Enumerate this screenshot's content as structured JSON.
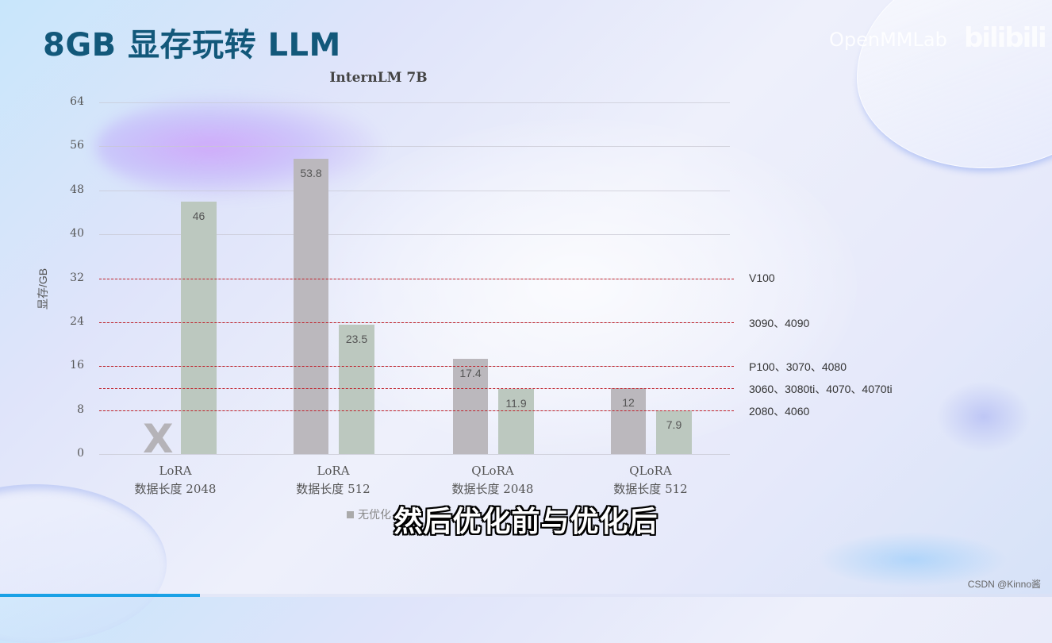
{
  "slide": {
    "title": "8GB 显存玩转 LLM",
    "brand": "OpenMMLab",
    "platform_logo": "bilibili",
    "subtitle_caption": "然后优化前与优化后",
    "watermark": "CSDN @Kinno酱",
    "progress_percent": 19
  },
  "chart_data": {
    "type": "bar",
    "title": "InternLM 7B",
    "xlabel": "",
    "ylabel": "显存/GB",
    "ylim": [
      0,
      64
    ],
    "yticks": [
      0,
      8,
      16,
      24,
      32,
      40,
      48,
      56,
      64
    ],
    "grid": true,
    "categories": [
      {
        "method": "LoRA",
        "detail": "数据长度 2048"
      },
      {
        "method": "LoRA",
        "detail": "数据长度 512"
      },
      {
        "method": "QLoRA",
        "detail": "数据长度 2048"
      },
      {
        "method": "QLoRA",
        "detail": "数据长度 512"
      }
    ],
    "series": [
      {
        "name": "无优化",
        "color": "#bbb8bd",
        "values": [
          null,
          53.8,
          17.4,
          12
        ],
        "labels": [
          "X",
          "53.8",
          "17.4",
          "12"
        ]
      },
      {
        "name": "优化后",
        "color": "#bcc8bf",
        "values": [
          46,
          23.5,
          11.9,
          7.9
        ],
        "labels": [
          "46",
          "23.5",
          "11.9",
          "7.9"
        ]
      }
    ],
    "annotations": {
      "missing_marker": "X",
      "reference_lines": [
        {
          "y": 32,
          "label": "V100"
        },
        {
          "y": 24,
          "label": "3090、4090"
        },
        {
          "y": 16,
          "label": "P100、3070、4080"
        },
        {
          "y": 12,
          "label": "3060、3080ti、4070、4070ti"
        },
        {
          "y": 8,
          "label": "2080、4060"
        }
      ],
      "reference_line_color": "#c0202a"
    },
    "legend": {
      "position": "bottom",
      "visible_text": "无优化"
    }
  }
}
